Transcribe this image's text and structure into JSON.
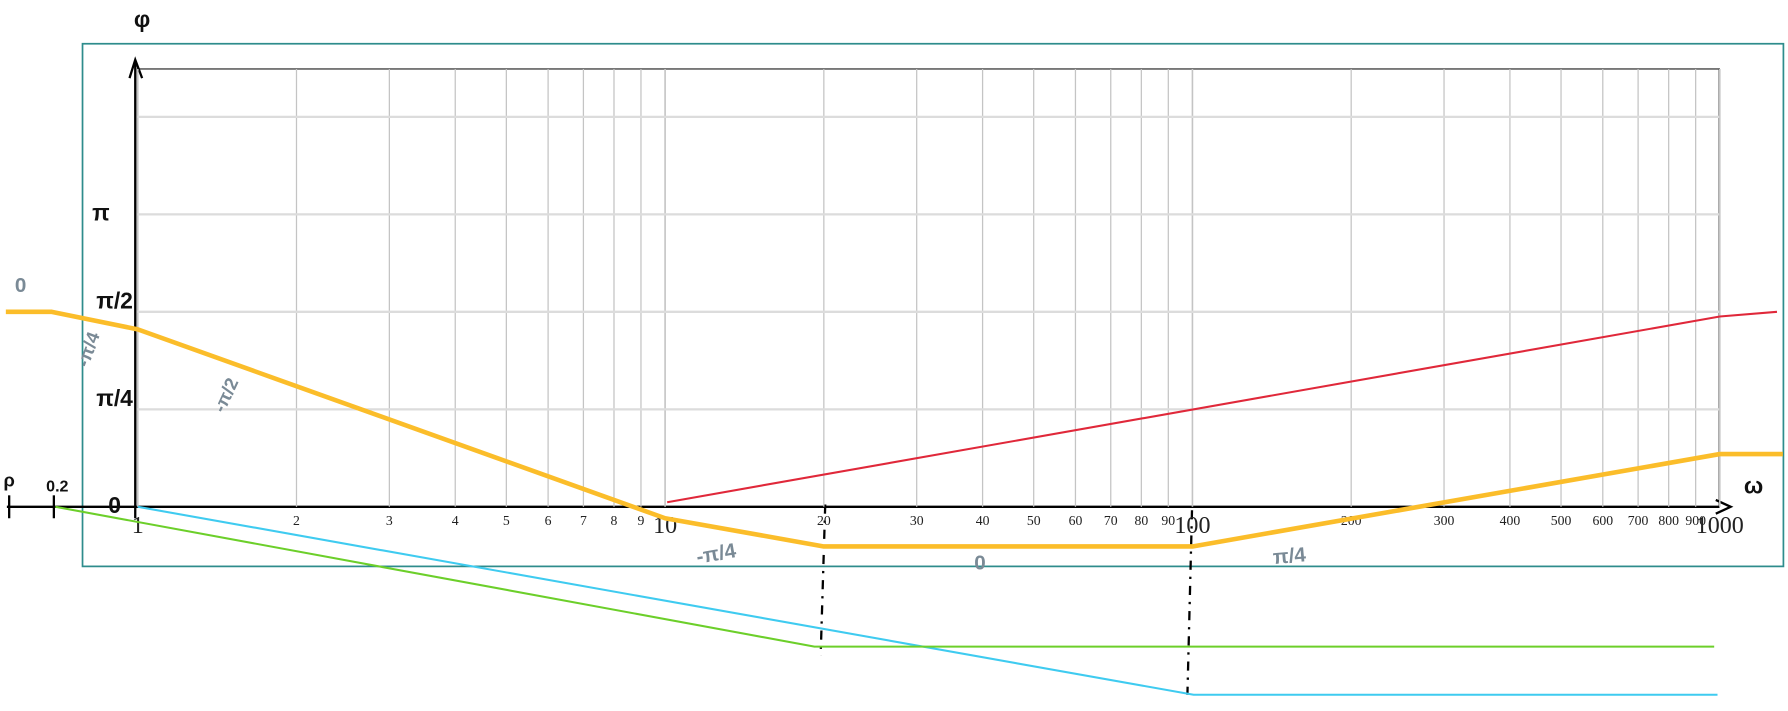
{
  "chart_data": {
    "type": "line",
    "log_x": true,
    "grid": true,
    "x_label": "ω",
    "y_label": "φ",
    "xlim": [
      0.548,
      1347
    ],
    "ylim": [
      -1.644,
      4.082
    ],
    "xticks": [
      1,
      2,
      3,
      4,
      5,
      6,
      7,
      8,
      9,
      10,
      20,
      30,
      40,
      50,
      60,
      70,
      80,
      90,
      100,
      200,
      300,
      400,
      500,
      600,
      700,
      800,
      900,
      1000
    ],
    "yticks": [
      0,
      {
        "value": 0.785,
        "label": "π/4"
      },
      {
        "value": 1.571,
        "label": "π/2"
      }
    ],
    "y_grid": [
      2.356,
      3.142
    ],
    "series": [
      {
        "name": "total",
        "color": "#fbbd2a",
        "x": [
          0.5623,
          0.687,
          1,
          10,
          20,
          100,
          1000,
          1317
        ],
        "values": [
          1.571,
          1.571,
          1.43,
          -0.092,
          -0.32,
          -0.32,
          0.425,
          0.425
        ]
      },
      {
        "name": "red",
        "color": "#e0283a",
        "x": [
          10.09,
          1000,
          1284
        ],
        "values": [
          0.037,
          1.533,
          1.571
        ]
      },
      {
        "name": "green",
        "color": "#6ccf2a",
        "x": [
          0.698,
          19.2,
          976
        ],
        "values": [
          0,
          -1.127,
          -1.127
        ]
      },
      {
        "name": "cyan",
        "color": "#3fcbf0",
        "x": [
          1,
          100.5,
          990
        ],
        "values": [
          0,
          -1.515,
          -1.515
        ]
      }
    ],
    "annotations": [
      {
        "text": "π",
        "color": "#111111"
      },
      {
        "text": "0.2",
        "color": "#111111"
      },
      {
        "text": "ρ",
        "color": "#111111"
      },
      {
        "text": "0",
        "color": "#7a8a96"
      },
      {
        "text": "-π/4",
        "color": "#7a8a96"
      },
      {
        "text": "-π/2",
        "color": "#7a8a96"
      },
      {
        "text": "-π/4",
        "color": "#7a8a96"
      },
      {
        "text": "0",
        "color": "#7a8a96"
      },
      {
        "text": "π/4",
        "color": "#7a8a96"
      }
    ]
  }
}
